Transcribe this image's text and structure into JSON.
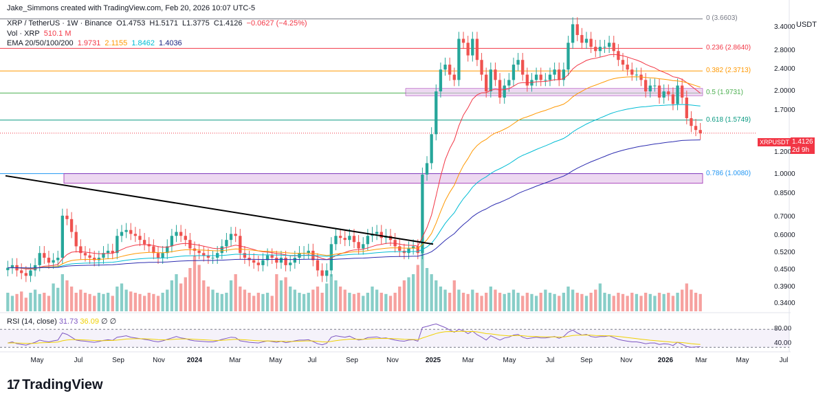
{
  "caption": "Jake_Simmons created with TradingView.com, Feb 20, 2026 10:07 UTC-5",
  "legend": {
    "symbol": "XRP / TetherUS · 1W · Binance",
    "o": "O1.4753",
    "h": "H1.5171",
    "l": "L1.3775",
    "c": "C1.4126",
    "chg": "−0.0627 (−4.25%)",
    "vol_label": "Vol · XRP",
    "vol_value": "510.1 M",
    "ema_label": "EMA 20/50/100/200",
    "ema20": "1.9731",
    "ema50": "2.1155",
    "ema100": "1.8462",
    "ema200": "1.4036"
  },
  "rsi_legend": {
    "label": "RSI (14, close)",
    "rsi": "31.73",
    "ma": "36.09",
    "extra1": "∅",
    "extra2": "∅"
  },
  "colors": {
    "up": "#26a69a",
    "down": "#ef5350",
    "ema20": "#f23645",
    "ema50": "#ff9800",
    "ema100": "#00bcd4",
    "ema200": "#2c2cb0"
  },
  "price_tag": {
    "symbol": "XRPUSDT",
    "price": "1.4126",
    "time": "2d 9h"
  },
  "footer": {
    "logo": "TradingView"
  },
  "chart_data": {
    "type": "candlestick",
    "title": "XRP / TetherUS · 1W · Binance",
    "y_unit": "USDT",
    "y_scale": "log",
    "yticks": [
      "3.4000",
      "2.8000",
      "2.4000",
      "2.0000",
      "1.7000",
      "1.4126",
      "1.2000",
      "1.0000",
      "0.8500",
      "0.7000",
      "0.6000",
      "0.5200",
      "0.4500",
      "0.3900",
      "0.3400"
    ],
    "xticks": [
      "May",
      "Jul",
      "Sep",
      "Nov",
      "2024",
      "Mar",
      "May",
      "Jul",
      "Sep",
      "Nov",
      "2025",
      "Mar",
      "May",
      "Jul",
      "Sep",
      "Nov",
      "2026",
      "Mar",
      "May",
      "Jul"
    ],
    "fib_levels": [
      {
        "label": "0 (3.6603)",
        "value": 3.6603,
        "color": "#787b86"
      },
      {
        "label": "0.236 (2.8640)",
        "value": 2.864,
        "color": "#f23645"
      },
      {
        "label": "0.382 (2.3713)",
        "value": 2.3713,
        "color": "#ff9800"
      },
      {
        "label": "0.5 (1.9731)",
        "value": 1.9731,
        "color": "#4caf50"
      },
      {
        "label": "0.618 (1.5749)",
        "value": 1.5749,
        "color": "#089981"
      },
      {
        "label": "0.786 (1.0080)",
        "value": 1.008,
        "color": "#2196f3"
      }
    ],
    "weekly_closes": [
      0.46,
      0.47,
      0.45,
      0.44,
      0.43,
      0.45,
      0.47,
      0.52,
      0.5,
      0.48,
      0.49,
      0.5,
      0.71,
      0.69,
      0.62,
      0.55,
      0.52,
      0.51,
      0.5,
      0.49,
      0.5,
      0.52,
      0.53,
      0.52,
      0.6,
      0.62,
      0.63,
      0.61,
      0.6,
      0.58,
      0.56,
      0.55,
      0.52,
      0.5,
      0.52,
      0.55,
      0.6,
      0.62,
      0.6,
      0.58,
      0.54,
      0.53,
      0.52,
      0.51,
      0.5,
      0.5,
      0.52,
      0.55,
      0.58,
      0.61,
      0.6,
      0.52,
      0.5,
      0.49,
      0.48,
      0.47,
      0.49,
      0.51,
      0.5,
      0.48,
      0.5,
      0.47,
      0.48,
      0.5,
      0.52,
      0.52,
      0.53,
      0.49,
      0.45,
      0.43,
      0.45,
      0.56,
      0.6,
      0.59,
      0.58,
      0.6,
      0.57,
      0.54,
      0.56,
      0.6,
      0.61,
      0.62,
      0.59,
      0.6,
      0.58,
      0.55,
      0.53,
      0.52,
      0.54,
      0.55,
      0.52,
      1.0,
      1.1,
      1.4,
      2.0,
      2.4,
      2.5,
      2.3,
      2.2,
      3.1,
      3.0,
      2.7,
      3.1,
      2.6,
      2.3,
      2.0,
      2.4,
      2.2,
      1.9,
      2.1,
      2.2,
      2.5,
      2.6,
      2.3,
      2.1,
      2.2,
      2.3,
      2.2,
      2.2,
      2.3,
      2.4,
      2.2,
      2.4,
      3.0,
      3.5,
      3.2,
      3.0,
      3.1,
      2.9,
      2.8,
      2.9,
      2.9,
      3.0,
      2.8,
      2.6,
      2.5,
      2.4,
      2.3,
      2.3,
      2.2,
      2.0,
      2.1,
      2.1,
      1.9,
      2.0,
      1.95,
      1.8,
      2.1,
      1.9,
      1.6,
      1.5,
      1.45,
      1.41
    ],
    "volume": [
      0.3,
      0.25,
      0.28,
      0.32,
      0.22,
      0.3,
      0.35,
      0.28,
      0.3,
      0.25,
      0.45,
      0.38,
      0.6,
      0.5,
      0.4,
      0.3,
      0.35,
      0.3,
      0.28,
      0.25,
      0.3,
      0.28,
      0.3,
      0.25,
      0.4,
      0.45,
      0.35,
      0.32,
      0.3,
      0.28,
      0.25,
      0.3,
      0.28,
      0.25,
      0.3,
      0.35,
      0.5,
      0.6,
      0.45,
      0.55,
      0.7,
      0.9,
      0.75,
      0.5,
      0.4,
      0.35,
      0.3,
      0.28,
      0.3,
      0.5,
      0.6,
      0.4,
      0.35,
      0.3,
      0.25,
      0.3,
      0.28,
      0.3,
      0.25,
      0.6,
      0.5,
      0.55,
      0.4,
      0.35,
      0.3,
      0.28,
      0.3,
      0.35,
      0.4,
      0.3,
      0.45,
      0.6,
      0.5,
      0.4,
      0.35,
      0.3,
      0.28,
      0.3,
      0.25,
      0.3,
      0.4,
      0.35,
      0.3,
      0.28,
      0.25,
      0.3,
      0.4,
      0.5,
      0.55,
      0.6,
      0.75,
      1.0,
      0.7,
      0.6,
      0.5,
      0.4,
      0.35,
      0.3,
      0.5,
      0.35,
      0.3,
      0.28,
      0.35,
      0.3,
      0.25,
      0.3,
      0.4,
      0.35,
      0.3,
      0.28,
      0.3,
      0.35,
      0.3,
      0.25,
      0.3,
      0.28,
      0.25,
      0.3,
      0.35,
      0.3,
      0.28,
      0.25,
      0.3,
      0.4,
      0.35,
      0.3,
      0.28,
      0.25,
      0.3,
      0.35,
      0.45,
      0.3,
      0.28,
      0.25,
      0.3,
      0.28,
      0.25,
      0.3,
      0.28,
      0.25,
      0.3,
      0.28,
      0.25,
      0.3,
      0.28,
      0.3,
      0.25,
      0.3,
      0.35,
      0.45,
      0.35,
      0.3,
      0.28
    ],
    "rsi": [
      42,
      45,
      40,
      38,
      36,
      40,
      44,
      50,
      47,
      45,
      48,
      50,
      70,
      66,
      58,
      50,
      48,
      47,
      45,
      44,
      46,
      49,
      51,
      49,
      58,
      60,
      62,
      58,
      56,
      54,
      52,
      50,
      47,
      45,
      48,
      52,
      56,
      60,
      56,
      54,
      50,
      48,
      47,
      46,
      45,
      45,
      48,
      52,
      55,
      58,
      57,
      48,
      46,
      44,
      43,
      42,
      45,
      48,
      46,
      44,
      47,
      43,
      45,
      48,
      50,
      50,
      51,
      46,
      40,
      37,
      41,
      58,
      62,
      60,
      58,
      61,
      55,
      50,
      52,
      57,
      58,
      59,
      55,
      56,
      53,
      50,
      48,
      47,
      50,
      51,
      47,
      85,
      88,
      92,
      95,
      90,
      85,
      78,
      72,
      80,
      76,
      68,
      75,
      65,
      58,
      50,
      62,
      56,
      50,
      56,
      58,
      64,
      66,
      58,
      54,
      56,
      58,
      56,
      56,
      58,
      60,
      55,
      60,
      72,
      78,
      70,
      64,
      66,
      60,
      58,
      60,
      60,
      62,
      57,
      52,
      49,
      47,
      45,
      45,
      43,
      40,
      42,
      42,
      38,
      40,
      39,
      35,
      44,
      38,
      32,
      30,
      31,
      31.73
    ]
  }
}
